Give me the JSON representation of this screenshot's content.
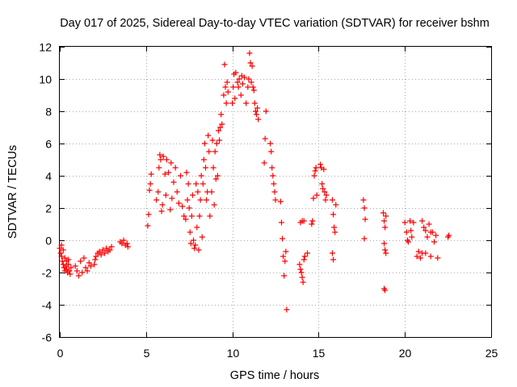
{
  "chart_data": {
    "type": "scatter",
    "title": "Day 017 of 2025, Sidereal Day-to-day VTEC variation (SDTVAR) for receiver bshm",
    "xlabel": "GPS time / hours",
    "ylabel": "SDTVAR / TECUs",
    "xlim": [
      0,
      25
    ],
    "ylim": [
      -6,
      12
    ],
    "xticks": [
      0,
      5,
      10,
      15,
      20,
      25
    ],
    "yticks": [
      -6,
      -4,
      -2,
      0,
      2,
      4,
      6,
      8,
      10,
      12
    ],
    "grid": true,
    "marker": "+",
    "color": "#ff0000",
    "series": [
      {
        "name": "SDTVAR",
        "points": [
          [
            0.0,
            -0.5
          ],
          [
            0.05,
            -0.8
          ],
          [
            0.1,
            -1.0
          ],
          [
            0.15,
            -1.3
          ],
          [
            0.2,
            -1.5
          ],
          [
            0.25,
            -1.7
          ],
          [
            0.3,
            -1.9
          ],
          [
            0.35,
            -1.6
          ],
          [
            0.4,
            -1.8
          ],
          [
            0.45,
            -2.0
          ],
          [
            0.5,
            -1.5
          ],
          [
            0.55,
            -1.9
          ],
          [
            0.6,
            -2.1
          ],
          [
            0.65,
            -1.7
          ],
          [
            0.1,
            -0.3
          ],
          [
            0.2,
            -0.6
          ],
          [
            0.3,
            -1.1
          ],
          [
            0.4,
            -1.3
          ],
          [
            0.5,
            -1.2
          ],
          [
            0.9,
            -1.6
          ],
          [
            1.0,
            -1.9
          ],
          [
            1.1,
            -2.2
          ],
          [
            1.2,
            -1.3
          ],
          [
            1.3,
            -2.0
          ],
          [
            1.4,
            -1.1
          ],
          [
            1.5,
            -1.7
          ],
          [
            1.6,
            -1.9
          ],
          [
            1.7,
            -1.4
          ],
          [
            1.8,
            -1.6
          ],
          [
            2.0,
            -1.5
          ],
          [
            2.05,
            -1.2
          ],
          [
            2.1,
            -1.0
          ],
          [
            2.2,
            -0.8
          ],
          [
            2.3,
            -0.7
          ],
          [
            2.4,
            -0.9
          ],
          [
            2.5,
            -0.6
          ],
          [
            2.6,
            -0.8
          ],
          [
            2.7,
            -0.5
          ],
          [
            2.8,
            -0.7
          ],
          [
            2.9,
            -0.6
          ],
          [
            3.0,
            -0.4
          ],
          [
            3.5,
            -0.1
          ],
          [
            3.6,
            -0.2
          ],
          [
            3.7,
            0.0
          ],
          [
            3.8,
            -0.3
          ],
          [
            3.9,
            -0.2
          ],
          [
            3.95,
            -0.4
          ],
          [
            5.1,
            0.9
          ],
          [
            5.15,
            1.6
          ],
          [
            5.2,
            3.1
          ],
          [
            5.25,
            3.5
          ],
          [
            5.3,
            4.1
          ],
          [
            5.6,
            2.5
          ],
          [
            5.7,
            3.0
          ],
          [
            5.75,
            4.5
          ],
          [
            5.8,
            5.3
          ],
          [
            5.85,
            5.0
          ],
          [
            5.9,
            1.8
          ],
          [
            5.95,
            2.2
          ],
          [
            6.0,
            5.2
          ],
          [
            6.1,
            4.1
          ],
          [
            6.15,
            2.8
          ],
          [
            6.2,
            5.0
          ],
          [
            6.3,
            4.2
          ],
          [
            6.4,
            1.9
          ],
          [
            6.45,
            4.8
          ],
          [
            6.5,
            2.6
          ],
          [
            6.6,
            3.6
          ],
          [
            6.7,
            4.5
          ],
          [
            6.8,
            3.0
          ],
          [
            6.9,
            2.3
          ],
          [
            7.0,
            4.0
          ],
          [
            7.1,
            2.1
          ],
          [
            7.2,
            1.5
          ],
          [
            7.3,
            1.3
          ],
          [
            7.35,
            4.2
          ],
          [
            7.4,
            2.5
          ],
          [
            7.45,
            3.5
          ],
          [
            7.5,
            2.0
          ],
          [
            7.55,
            0.5
          ],
          [
            7.6,
            -0.2
          ],
          [
            7.65,
            1.5
          ],
          [
            7.7,
            2.8
          ],
          [
            7.75,
            0.0
          ],
          [
            7.8,
            -0.5
          ],
          [
            7.85,
            -0.3
          ],
          [
            7.9,
            3.5
          ],
          [
            7.95,
            0.8
          ],
          [
            8.0,
            3.0
          ],
          [
            8.05,
            -0.6
          ],
          [
            8.1,
            1.5
          ],
          [
            8.15,
            2.5
          ],
          [
            8.2,
            4.0
          ],
          [
            8.25,
            0.2
          ],
          [
            8.3,
            3.5
          ],
          [
            8.35,
            5.0
          ],
          [
            8.4,
            6.0
          ],
          [
            8.45,
            4.5
          ],
          [
            8.5,
            2.5
          ],
          [
            8.55,
            3.0
          ],
          [
            8.6,
            6.5
          ],
          [
            8.65,
            5.5
          ],
          [
            8.7,
            1.5
          ],
          [
            8.8,
            3.0
          ],
          [
            8.85,
            6.2
          ],
          [
            8.9,
            4.5
          ],
          [
            8.95,
            2.2
          ],
          [
            9.0,
            5.5
          ],
          [
            9.05,
            3.8
          ],
          [
            9.1,
            6.0
          ],
          [
            9.15,
            4.0
          ],
          [
            9.2,
            6.8
          ],
          [
            9.25,
            6.2
          ],
          [
            9.3,
            7.0
          ],
          [
            9.35,
            7.8
          ],
          [
            9.4,
            7.2
          ],
          [
            9.5,
            9.0
          ],
          [
            9.55,
            10.9
          ],
          [
            9.6,
            9.5
          ],
          [
            9.65,
            8.5
          ],
          [
            9.7,
            9.8
          ],
          [
            9.75,
            9.2
          ],
          [
            10.0,
            8.5
          ],
          [
            10.05,
            9.5
          ],
          [
            10.1,
            10.3
          ],
          [
            10.15,
            8.8
          ],
          [
            10.2,
            10.4
          ],
          [
            10.3,
            9.8
          ],
          [
            10.35,
            9.5
          ],
          [
            10.4,
            10.0
          ],
          [
            10.5,
            9.0
          ],
          [
            10.55,
            10.2
          ],
          [
            10.6,
            9.7
          ],
          [
            10.7,
            10.1
          ],
          [
            10.8,
            8.5
          ],
          [
            10.9,
            9.5
          ],
          [
            10.95,
            10.0
          ],
          [
            11.0,
            11.6
          ],
          [
            11.05,
            11.0
          ],
          [
            11.1,
            9.8
          ],
          [
            11.15,
            10.8
          ],
          [
            11.2,
            9.5
          ],
          [
            11.25,
            9.3
          ],
          [
            11.3,
            8.5
          ],
          [
            11.35,
            8.0
          ],
          [
            11.4,
            7.8
          ],
          [
            11.45,
            8.2
          ],
          [
            11.5,
            7.5
          ],
          [
            11.95,
            8.0
          ],
          [
            11.9,
            6.3
          ],
          [
            11.85,
            4.8
          ],
          [
            12.2,
            6.0
          ],
          [
            12.25,
            5.5
          ],
          [
            12.3,
            4.5
          ],
          [
            12.35,
            4.0
          ],
          [
            12.4,
            3.5
          ],
          [
            12.45,
            3.0
          ],
          [
            12.5,
            2.5
          ],
          [
            12.8,
            2.4
          ],
          [
            12.85,
            1.1
          ],
          [
            12.9,
            0.1
          ],
          [
            12.95,
            -1.0
          ],
          [
            13.0,
            -2.2
          ],
          [
            13.05,
            -1.3
          ],
          [
            13.1,
            -0.7
          ],
          [
            13.15,
            -4.3
          ],
          [
            13.9,
            -1.5
          ],
          [
            13.95,
            -1.8
          ],
          [
            14.0,
            -2.0
          ],
          [
            14.05,
            -2.3
          ],
          [
            14.1,
            -2.6
          ],
          [
            14.15,
            -1.2
          ],
          [
            14.2,
            -1.0
          ],
          [
            13.95,
            1.1
          ],
          [
            14.05,
            1.2
          ],
          [
            14.15,
            1.2
          ],
          [
            14.35,
            -0.8
          ],
          [
            14.6,
            1.0
          ],
          [
            14.65,
            1.2
          ],
          [
            14.7,
            2.6
          ],
          [
            14.75,
            4.0
          ],
          [
            14.8,
            4.3
          ],
          [
            14.85,
            4.5
          ],
          [
            14.9,
            2.8
          ],
          [
            15.1,
            4.7
          ],
          [
            15.15,
            4.5
          ],
          [
            15.2,
            3.5
          ],
          [
            15.25,
            3.2
          ],
          [
            15.3,
            4.4
          ],
          [
            15.35,
            3.0
          ],
          [
            15.4,
            2.5
          ],
          [
            15.45,
            2.8
          ],
          [
            15.8,
            2.5
          ],
          [
            15.85,
            1.6
          ],
          [
            15.9,
            0.8
          ],
          [
            15.95,
            0.5
          ],
          [
            15.8,
            -0.8
          ],
          [
            15.85,
            -1.2
          ],
          [
            16.0,
            2.2
          ],
          [
            17.6,
            2.5
          ],
          [
            17.65,
            2.0
          ],
          [
            17.7,
            1.3
          ],
          [
            17.65,
            0.1
          ],
          [
            18.75,
            1.7
          ],
          [
            18.8,
            1.2
          ],
          [
            18.85,
            0.8
          ],
          [
            18.9,
            1.5
          ],
          [
            18.8,
            -0.2
          ],
          [
            18.85,
            -0.6
          ],
          [
            18.9,
            -0.8
          ],
          [
            18.8,
            -3.0
          ],
          [
            18.85,
            -3.1
          ],
          [
            20.0,
            1.1
          ],
          [
            20.1,
            0.5
          ],
          [
            20.15,
            0.0
          ],
          [
            20.2,
            -0.1
          ],
          [
            20.3,
            1.2
          ],
          [
            20.35,
            0.6
          ],
          [
            20.4,
            0.2
          ],
          [
            20.5,
            1.1
          ],
          [
            20.7,
            -1.0
          ],
          [
            20.8,
            -0.7
          ],
          [
            20.9,
            -1.1
          ],
          [
            21.0,
            -0.8
          ],
          [
            21.1,
            0.8
          ],
          [
            21.2,
            -0.8
          ],
          [
            21.3,
            0.2
          ],
          [
            21.4,
            1.0
          ],
          [
            21.5,
            -1.0
          ],
          [
            21.6,
            0.5
          ],
          [
            21.7,
            -0.1
          ],
          [
            21.8,
            0.3
          ],
          [
            21.9,
            -1.1
          ],
          [
            21.0,
            1.2
          ],
          [
            21.2,
            0.6
          ],
          [
            21.5,
            0.5
          ],
          [
            22.5,
            0.2
          ],
          [
            22.55,
            0.3
          ]
        ]
      }
    ]
  }
}
